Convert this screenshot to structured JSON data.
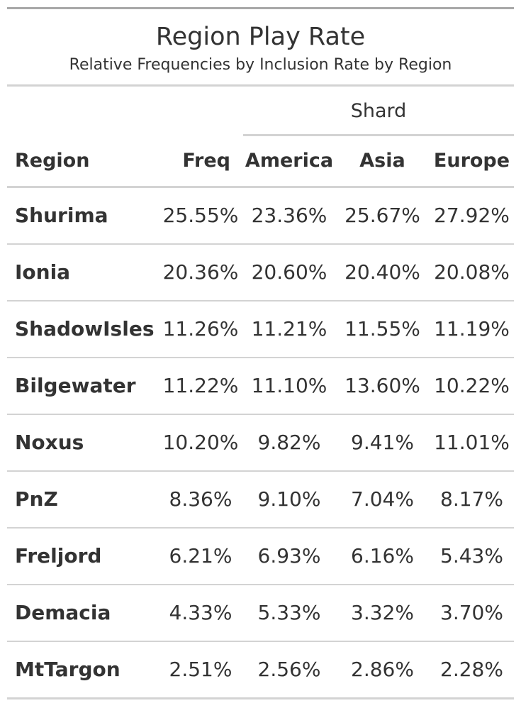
{
  "header": {
    "title": "Region Play Rate",
    "subtitle": "Relative Frequencies by Inclusion Rate by Region"
  },
  "spanner": {
    "label": "Shard"
  },
  "columns": {
    "region": "Region",
    "freq": "Freq",
    "america": "America",
    "asia": "Asia",
    "europe": "Europe"
  },
  "rows": [
    {
      "region": "Shurima",
      "freq": "25.55%",
      "america": "23.36%",
      "asia": "25.67%",
      "europe": "27.92%"
    },
    {
      "region": "Ionia",
      "freq": "20.36%",
      "america": "20.60%",
      "asia": "20.40%",
      "europe": "20.08%"
    },
    {
      "region": "ShadowIsles",
      "freq": "11.26%",
      "america": "11.21%",
      "asia": "11.55%",
      "europe": "11.19%"
    },
    {
      "region": "Bilgewater",
      "freq": "11.22%",
      "america": "11.10%",
      "asia": "13.60%",
      "europe": "10.22%"
    },
    {
      "region": "Noxus",
      "freq": "10.20%",
      "america": "9.82%",
      "asia": "9.41%",
      "europe": "11.01%"
    },
    {
      "region": "PnZ",
      "freq": "8.36%",
      "america": "9.10%",
      "asia": "7.04%",
      "europe": "8.17%"
    },
    {
      "region": "Freljord",
      "freq": "6.21%",
      "america": "6.93%",
      "asia": "6.16%",
      "europe": "5.43%"
    },
    {
      "region": "Demacia",
      "freq": "4.33%",
      "america": "5.33%",
      "asia": "3.32%",
      "europe": "3.70%"
    },
    {
      "region": "MtTargon",
      "freq": "2.51%",
      "america": "2.56%",
      "asia": "2.86%",
      "europe": "2.28%"
    }
  ],
  "colors": {
    "text": "#333333",
    "rule_dark": "#a8a8a8",
    "rule_light": "#d3d3d3"
  }
}
